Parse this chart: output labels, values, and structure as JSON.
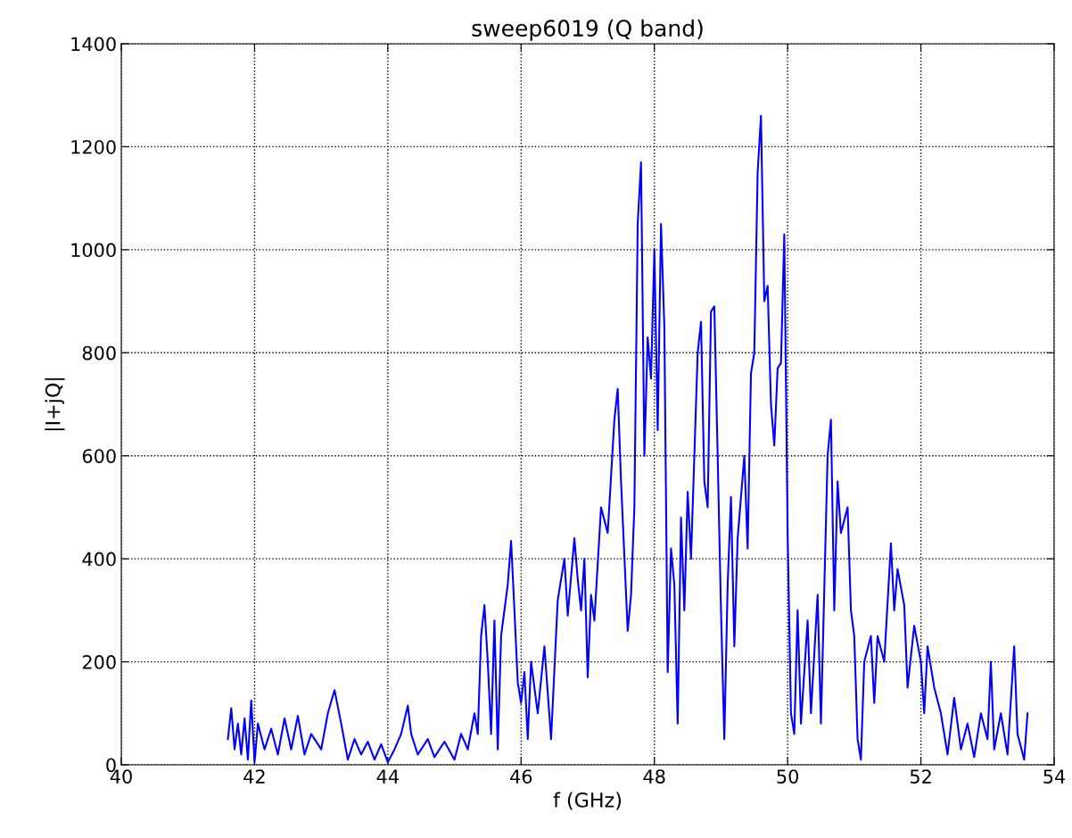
{
  "chart_data": {
    "type": "line",
    "title": "sweep6019 (Q band)",
    "xlabel": "f (GHz)",
    "ylabel": "|I+jQ|",
    "xlim": [
      40,
      54
    ],
    "xticks": [
      40,
      42,
      44,
      46,
      48,
      50,
      52,
      54
    ],
    "ylim": [
      0,
      1400
    ],
    "yticks": [
      0,
      200,
      400,
      600,
      800,
      1000,
      1200,
      1400
    ],
    "grid": true,
    "line_style": "solid",
    "marker": "none",
    "series": [
      {
        "color": "#0000ff",
        "x": [
          41.6,
          41.65,
          41.7,
          41.75,
          41.8,
          41.85,
          41.9,
          41.95,
          42.0,
          42.05,
          42.15,
          42.25,
          42.35,
          42.45,
          42.55,
          42.65,
          42.75,
          42.85,
          43.0,
          43.1,
          43.2,
          43.3,
          43.4,
          43.5,
          43.6,
          43.7,
          43.8,
          43.9,
          44.0,
          44.1,
          44.2,
          44.3,
          44.35,
          44.45,
          44.6,
          44.7,
          44.85,
          45.0,
          45.1,
          45.2,
          45.3,
          45.35,
          45.4,
          45.45,
          45.5,
          45.55,
          45.6,
          45.65,
          45.7,
          45.8,
          45.85,
          45.9,
          45.95,
          46.0,
          46.05,
          46.1,
          46.15,
          46.25,
          46.35,
          46.45,
          46.55,
          46.65,
          46.7,
          46.8,
          46.85,
          46.9,
          46.95,
          47.0,
          47.05,
          47.1,
          47.2,
          47.3,
          47.4,
          47.45,
          47.5,
          47.6,
          47.65,
          47.7,
          47.75,
          47.8,
          47.85,
          47.9,
          47.95,
          48.0,
          48.05,
          48.1,
          48.15,
          48.2,
          48.25,
          48.3,
          48.35,
          48.4,
          48.45,
          48.5,
          48.55,
          48.65,
          48.7,
          48.75,
          48.8,
          48.85,
          48.9,
          48.95,
          49.0,
          49.05,
          49.1,
          49.15,
          49.2,
          49.25,
          49.35,
          49.4,
          49.45,
          49.5,
          49.55,
          49.6,
          49.65,
          49.7,
          49.75,
          49.8,
          49.85,
          49.9,
          49.95,
          50.0,
          50.05,
          50.1,
          50.15,
          50.2,
          50.3,
          50.35,
          50.45,
          50.5,
          50.6,
          50.65,
          50.7,
          50.75,
          50.8,
          50.9,
          50.95,
          51.0,
          51.05,
          51.1,
          51.15,
          51.25,
          51.3,
          51.35,
          51.45,
          51.55,
          51.6,
          51.65,
          51.75,
          51.8,
          51.9,
          52.0,
          52.05,
          52.1,
          52.2,
          52.3,
          52.4,
          52.5,
          52.6,
          52.7,
          52.8,
          52.9,
          53.0,
          53.05,
          53.1,
          53.2,
          53.3,
          53.4,
          53.45,
          53.55,
          53.6
        ],
        "values": [
          50,
          110,
          30,
          80,
          20,
          90,
          10,
          125,
          5,
          80,
          30,
          70,
          20,
          90,
          30,
          95,
          20,
          60,
          30,
          100,
          145,
          80,
          10,
          50,
          20,
          45,
          10,
          40,
          5,
          30,
          60,
          115,
          60,
          20,
          50,
          15,
          45,
          10,
          60,
          30,
          100,
          60,
          250,
          310,
          200,
          60,
          280,
          30,
          250,
          350,
          435,
          300,
          160,
          120,
          180,
          50,
          200,
          100,
          230,
          50,
          320,
          400,
          290,
          440,
          360,
          300,
          400,
          170,
          330,
          280,
          500,
          450,
          670,
          730,
          550,
          260,
          330,
          500,
          1050,
          1170,
          600,
          830,
          750,
          1000,
          650,
          1050,
          850,
          180,
          420,
          350,
          80,
          480,
          300,
          530,
          400,
          800,
          860,
          550,
          500,
          880,
          890,
          600,
          300,
          50,
          350,
          520,
          230,
          440,
          600,
          420,
          760,
          800,
          1150,
          1260,
          900,
          930,
          700,
          620,
          770,
          780,
          1030,
          450,
          100,
          60,
          300,
          80,
          280,
          100,
          330,
          80,
          600,
          670,
          300,
          550,
          450,
          500,
          300,
          250,
          50,
          10,
          200,
          250,
          120,
          250,
          200,
          430,
          300,
          380,
          310,
          150,
          270,
          200,
          100,
          230,
          150,
          100,
          20,
          130,
          30,
          80,
          15,
          100,
          50,
          200,
          30,
          100,
          20,
          230,
          60,
          10,
          100
        ]
      }
    ]
  }
}
